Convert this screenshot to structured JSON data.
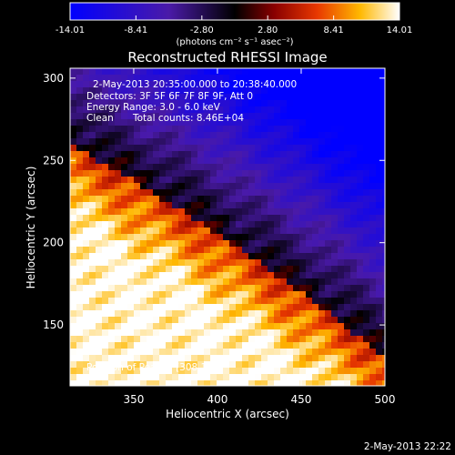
{
  "colorbar": {
    "ticks": [
      "-14.01",
      "-8.41",
      "-2.80",
      "2.80",
      "8.41",
      "14.01"
    ],
    "tick_values": [
      -14.01,
      -8.41,
      -2.8,
      2.8,
      8.41,
      14.01
    ],
    "range": [
      -14.01,
      14.01
    ],
    "unit_label": "(photons cm⁻² s⁻¹ asec⁻²)",
    "colormap": [
      "#0000ff",
      "#4a1aa8",
      "#000000",
      "#8a0000",
      "#e83800",
      "#ffb800",
      "#ffffff"
    ]
  },
  "chart_data": {
    "type": "heatmap",
    "title": "Reconstructed RHESSI Image",
    "xlabel": "Heliocentric X (arcsec)",
    "ylabel": "Heliocentric Y (arcsec)",
    "xlim": [
      312,
      500
    ],
    "ylim": [
      113,
      306
    ],
    "xticks": [
      350,
      400,
      450,
      500
    ],
    "yticks": [
      150,
      200,
      250,
      300
    ],
    "annotations": {
      "time_range": "2-May-2013 20:35:00.000 to 20:38:40.000",
      "detectors": "Detectors: 3F 5F 6F 7F 8F 9F, Att 0",
      "energy_range": "Energy Range: 3.0 - 6.0 keV",
      "clean": "Clean",
      "total_counts": "Total counts: 8.46E+04",
      "peak": "Position of Peak = [308,196]"
    },
    "peak": [
      308,
      196
    ]
  },
  "footer": {
    "date": "2-May-2013 22:22"
  }
}
